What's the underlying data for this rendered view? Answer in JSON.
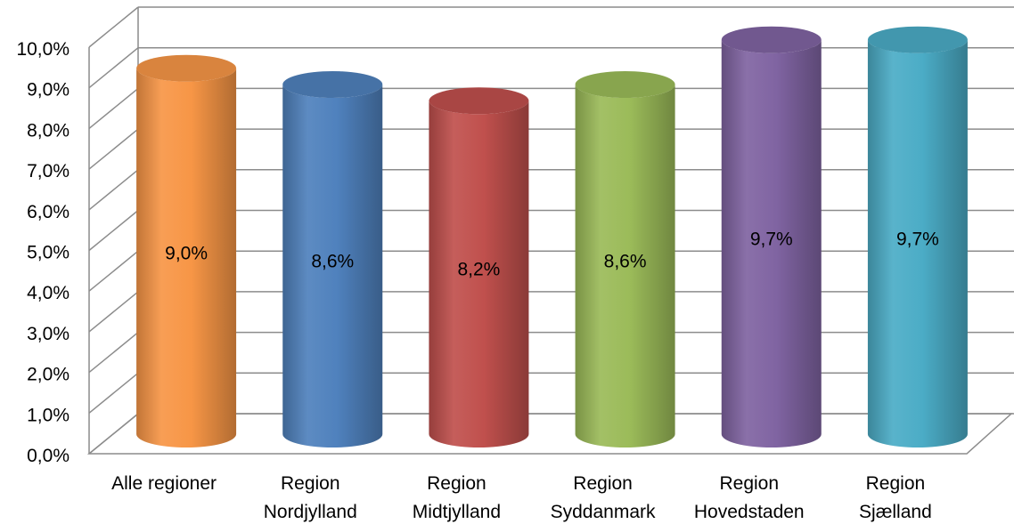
{
  "chart_data": {
    "type": "bar",
    "style": "3d-cylinder",
    "categories": [
      [
        "Alle regioner"
      ],
      [
        "Region",
        "Nordjylland"
      ],
      [
        "Region",
        "Midtjylland"
      ],
      [
        "Region",
        "Syddanmark"
      ],
      [
        "Region",
        "Hovedstaden"
      ],
      [
        "Region",
        "Sjælland"
      ]
    ],
    "values": [
      9.0,
      8.6,
      8.2,
      8.6,
      9.7,
      9.7
    ],
    "data_labels": [
      "9,0%",
      "8,6%",
      "8,2%",
      "8,6%",
      "9,7%",
      "9,7%"
    ],
    "colors": [
      "#f79646",
      "#4f81bd",
      "#c0504d",
      "#9bbb59",
      "#8064a2",
      "#4bacc6"
    ],
    "y_ticks": [
      "0,0%",
      "1,0%",
      "2,0%",
      "3,0%",
      "4,0%",
      "5,0%",
      "6,0%",
      "7,0%",
      "8,0%",
      "9,0%",
      "10,0%"
    ],
    "ylim": [
      0,
      10
    ],
    "grid": true,
    "legend": "none",
    "title": "",
    "xlabel": "",
    "ylabel": ""
  }
}
